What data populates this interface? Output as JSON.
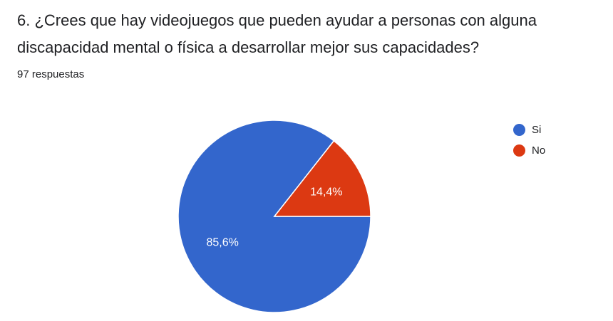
{
  "question": {
    "title": "6. ¿Crees que hay videojuegos que pueden ayudar a personas con alguna discapacidad mental o física a desarrollar mejor sus capacidades?",
    "response_count": "97 respuestas"
  },
  "chart_data": {
    "type": "pie",
    "title": "",
    "categories": [
      "Si",
      "No"
    ],
    "values": [
      85.6,
      14.4
    ],
    "labels": [
      "85,6%",
      "14,4%"
    ],
    "colors": [
      "#3366cc",
      "#dc3912"
    ],
    "legend_position": "right"
  }
}
